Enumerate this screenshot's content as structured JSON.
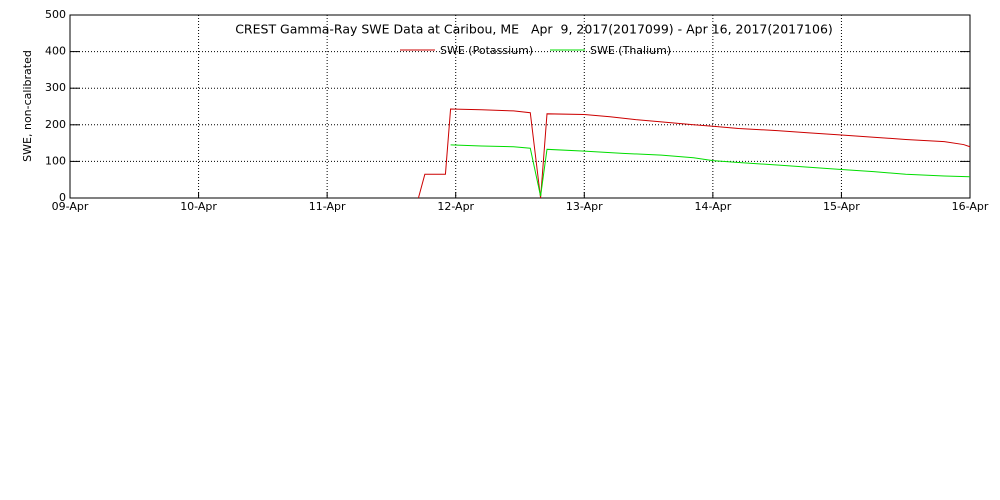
{
  "chart_data": {
    "type": "line",
    "title": "CREST Gamma-Ray SWE Data at Caribou, ME   Apr  9, 2017(2017099) - Apr 16, 2017(2017106)",
    "y_label": "SWE, non-calibrated",
    "xlim": [
      0,
      7
    ],
    "xticks": [
      {
        "value": 0,
        "label": "09-Apr"
      },
      {
        "value": 1,
        "label": "10-Apr"
      },
      {
        "value": 2,
        "label": "11-Apr"
      },
      {
        "value": 3,
        "label": "12-Apr"
      },
      {
        "value": 4,
        "label": "13-Apr"
      },
      {
        "value": 5,
        "label": "14-Apr"
      },
      {
        "value": 6,
        "label": "15-Apr"
      },
      {
        "value": 7,
        "label": "16-Apr"
      }
    ],
    "ylim": [
      0,
      500
    ],
    "yticks": [
      0,
      100,
      200,
      300,
      400,
      500
    ],
    "grid": true,
    "series": [
      {
        "name": "SWE (Potassium)",
        "color": "#cc0000",
        "x": [
          2.71,
          2.76,
          2.92,
          2.96,
          3.2,
          3.45,
          3.58,
          3.66,
          3.71,
          4.0,
          4.2,
          4.4,
          4.6,
          4.85,
          5.0,
          5.2,
          5.5,
          5.75,
          6.0,
          6.25,
          6.5,
          6.8,
          6.95,
          7.0
        ],
        "values": [
          0,
          65,
          65,
          243,
          241,
          238,
          233,
          0,
          230,
          228,
          222,
          214,
          208,
          200,
          196,
          190,
          184,
          178,
          172,
          166,
          160,
          154,
          146,
          140
        ]
      },
      {
        "name": "SWE (Thalium)",
        "color": "#00dd00",
        "x": [
          2.96,
          3.2,
          3.45,
          3.58,
          3.66,
          3.71,
          4.0,
          4.3,
          4.6,
          4.85,
          5.0,
          5.2,
          5.5,
          5.75,
          6.0,
          6.25,
          6.5,
          6.8,
          7.0
        ],
        "values": [
          145,
          142,
          140,
          136,
          5,
          133,
          128,
          122,
          117,
          110,
          102,
          97,
          90,
          84,
          78,
          72,
          65,
          60,
          58
        ]
      }
    ]
  }
}
